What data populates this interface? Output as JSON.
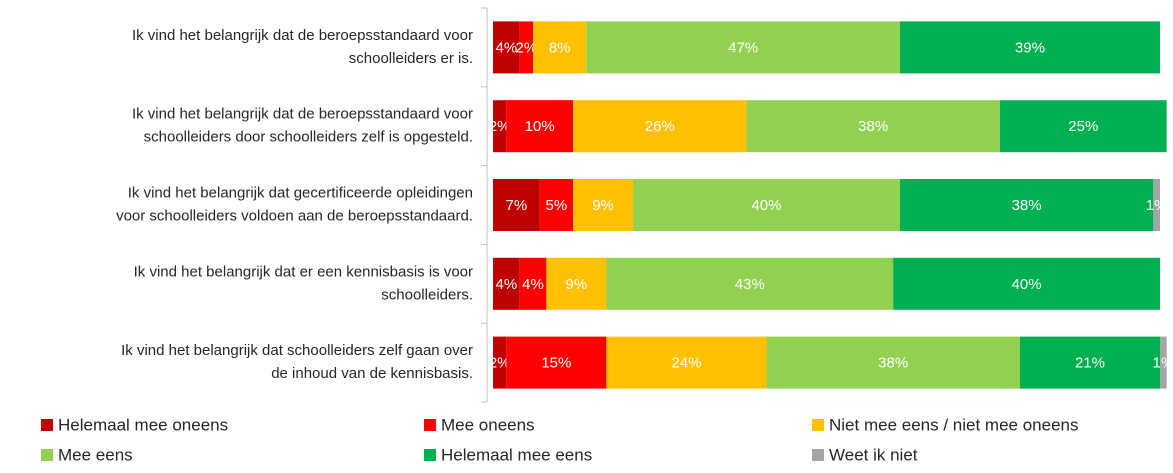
{
  "chart_data": {
    "type": "stacked-bar-horizontal",
    "categories": [
      [
        "Ik vind het belangrijk dat de beroepsstandaard voor",
        "schoolleiders er is."
      ],
      [
        "Ik vind het belangrijk dat de beroepsstandaard voor",
        "schoolleiders door schoolleiders zelf is opgesteld."
      ],
      [
        "Ik vind het belangrijk dat gecertificeerde opleidingen",
        "voor schoolleiders voldoen aan de beroepsstandaard."
      ],
      [
        "Ik vind het belangrijk dat er een kennisbasis is voor",
        "schoolleiders."
      ],
      [
        "Ik vind het belangrijk dat schoolleiders zelf gaan over",
        "de inhoud van de kennisbasis."
      ]
    ],
    "xlim": [
      0,
      100
    ],
    "legend": "bottom",
    "series": [
      {
        "name": "Helemaal mee oneens",
        "color": "#c00000",
        "values": [
          4,
          2,
          7,
          4,
          2
        ],
        "value_labels": [
          "4%",
          "2%",
          "7%",
          "4%",
          "2%"
        ]
      },
      {
        "name": "Mee oneens",
        "color": "#ff0000",
        "values": [
          2,
          10,
          5,
          4,
          15
        ],
        "value_labels": [
          "2%",
          "10%",
          "5%",
          "4%",
          "15%"
        ]
      },
      {
        "name": "Niet mee eens / niet mee oneens",
        "color": "#ffc000",
        "values": [
          8,
          26,
          9,
          9,
          24
        ],
        "value_labels": [
          "8%",
          "26%",
          "9%",
          "9%",
          "24%"
        ]
      },
      {
        "name": "Mee eens",
        "color": "#92d050",
        "values": [
          47,
          38,
          40,
          43,
          38
        ],
        "value_labels": [
          "47%",
          "38%",
          "40%",
          "43%",
          "38%"
        ]
      },
      {
        "name": "Helemaal mee eens",
        "color": "#00b050",
        "values": [
          39,
          25,
          38,
          40,
          21
        ],
        "value_labels": [
          "39%",
          "25%",
          "38%",
          "40%",
          "21%"
        ]
      },
      {
        "name": "Weet ik niet",
        "color": "#a5a5a5",
        "values": [
          null,
          null,
          1,
          null,
          1
        ],
        "value_labels": [
          null,
          null,
          "1%",
          null,
          "1%"
        ]
      }
    ]
  }
}
